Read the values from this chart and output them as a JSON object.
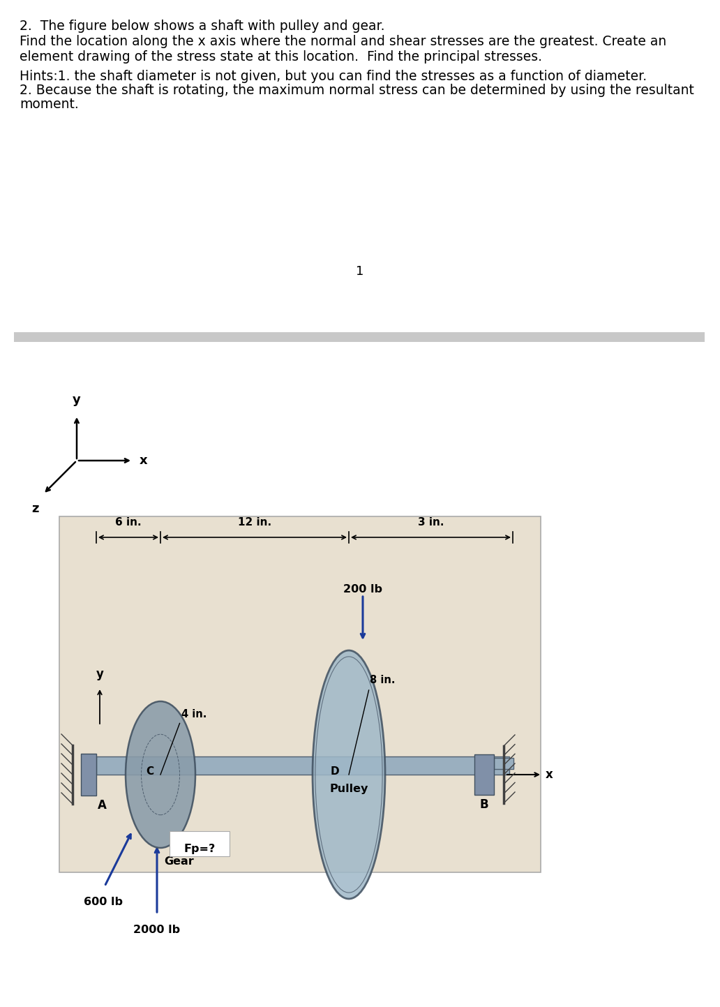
{
  "title_line1": "2.  The figure below shows a shaft with pulley and gear.",
  "title_line2": "Find the location along the x axis where the normal and shear stresses are the greatest. Create an",
  "title_line3": "element drawing of the stress state at this location.  Find the principal stresses.",
  "blank_line": "",
  "hint_line1": "Hints:1. the shaft diameter is not given, but you can find the stresses as a function of diameter.",
  "hint_line2": "2. Because the shaft is rotating, the maximum normal stress can be determined by using the resultant",
  "hint_line3": "moment.",
  "page_number": "1",
  "dim_6in": "6 in.",
  "dim_12in": "12 in.",
  "dim_3in": "3 in.",
  "dim_4in": "4 in.",
  "dim_8in": "8 in.",
  "label_A": "A",
  "label_B": "B",
  "label_C": "C",
  "label_D": "D",
  "label_Gear": "Gear",
  "label_Pulley": "Pulley",
  "label_Fp": "Fp=?",
  "label_600lb": "600 lb",
  "label_2000lb": "2000 lb",
  "label_200lb": "200 lb",
  "label_x": "x",
  "label_y": "y",
  "label_z": "z",
  "label_x2": "x",
  "label_y2": "y",
  "bg_color": "#e8e0d0",
  "shaft_color": "#9aafbf",
  "gear_color": "#8a9caa",
  "pulley_color": "#9fb8c8",
  "arrow_color": "#1a3a9a",
  "text_color": "#000000",
  "sep_color": "#c8c8c8",
  "white_bg": "#ffffff",
  "bearing_color": "#8090a8"
}
